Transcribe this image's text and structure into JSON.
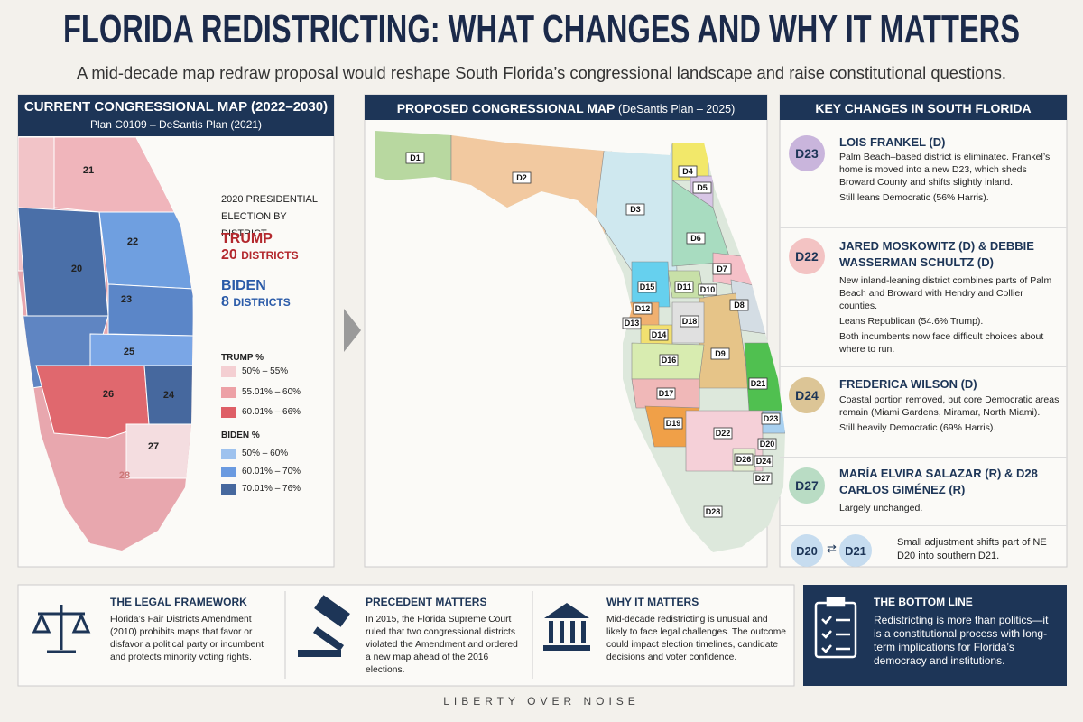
{
  "header": {
    "title": "FLORIDA REDISTRICTING: WHAT CHANGES AND WHY IT MATTERS",
    "subtitle": "A mid-decade map redraw proposal would reshape South Florida’s congressional landscape and raise constitutional questions."
  },
  "current_map": {
    "title": "CURRENT CONGRESSIONAL MAP (2022–2030)",
    "subtitle": "Plan C0109 – DeSantis Plan (2021)",
    "district_labels": [
      "21",
      "22",
      "20",
      "23",
      "25",
      "26",
      "24",
      "27",
      "28"
    ],
    "election": {
      "title": "2020 PRESIDENTIAL ELECTION BY DISTRICT",
      "trump": {
        "name": "TRUMP",
        "count": 20,
        "unit": "DISTRICTS"
      },
      "biden": {
        "name": "BIDEN",
        "count": 8,
        "unit": "DISTRICTS"
      }
    },
    "legend": {
      "trump": {
        "title": "TRUMP %",
        "items": [
          "50% – 55%",
          "55.01% – 60%",
          "60.01% – 66%"
        ]
      },
      "biden": {
        "title": "BIDEN %",
        "items": [
          "50% – 60%",
          "60.01% – 70%",
          "70.01% – 76%"
        ]
      }
    }
  },
  "proposed_map": {
    "title": "PROPOSED CONGRESSIONAL MAP",
    "title_note": "(DeSantis Plan – 2025)",
    "district_labels": [
      "D1",
      "D2",
      "D3",
      "D4",
      "D5",
      "D6",
      "D7",
      "D8",
      "D9",
      "D10",
      "D11",
      "D12",
      "D13",
      "D14",
      "D15",
      "D16",
      "D17",
      "D18",
      "D19",
      "D20",
      "D21",
      "D22",
      "D23",
      "D24",
      "D26",
      "D27",
      "D28"
    ]
  },
  "key_changes": {
    "title": "KEY CHANGES IN SOUTH FLORIDA",
    "items": [
      {
        "badge": "D23",
        "heading": "LOIS FRANKEL (D)",
        "paragraphs": [
          "Palm Beach–based district is eliminatec. Frankel’s home is moved into a new D23, which sheds Broward County and shifts slightly inland.",
          "Still leans Democratic (56% Harris)."
        ]
      },
      {
        "badge": "D22",
        "heading": "JARED MOSKOWITZ (D) & DEBBIE WASSERMAN SCHULTZ (D)",
        "paragraphs": [
          "New inland-leaning district combines parts of Palm Beach and Broward with Hendry and Collier counties.",
          "Leans Republican (54.6% Trump).",
          "Both incumbents now face difficult choices about where to run."
        ]
      },
      {
        "badge": "D24",
        "heading": "FREDERICA WILSON (D)",
        "paragraphs": [
          "Coastal portion removed, but core Democratic areas remain (Miami Gardens, Miramar, North Miami).",
          "Still heavily Democratic (69% Harris)."
        ]
      },
      {
        "badge": "D27",
        "heading": "MARÍA ELVIRA SALAZAR (R) & D28 CARLOS GIMÉNEZ (R)",
        "paragraphs": [
          "Largely unchanged."
        ]
      }
    ],
    "shift": {
      "from": "D20",
      "to": "D21",
      "text": "Small adjustment shifts part of NE D20 into southern D21."
    }
  },
  "bottom": {
    "sections": [
      {
        "title": "THE LEGAL FRAMEWORK",
        "text": "Florida’s Fair Districts Amendment (2010) prohibits maps that favor or disfavor a political party or incumbent and protects minority voting rights."
      },
      {
        "title": "PRECEDENT MATTERS",
        "text": "In 2015, the Florida Supreme Court ruled that two congressional districts violated the Amendment and ordered a new map ahead of the 2016 elections."
      },
      {
        "title": "WHY IT MATTERS",
        "text": "Mid-decade redistricting is unusual and likely to face legal challenges. The outcome could impact election timelines, candidate decisions and voter confidence."
      }
    ],
    "bottom_line": {
      "title": "THE BOTTOM LINE",
      "text": "Redistricting is more than politics—it is a constitutional process with long-term implications for Florida’s democracy and institutions."
    }
  },
  "footer": "LIBERTY OVER NOISE"
}
